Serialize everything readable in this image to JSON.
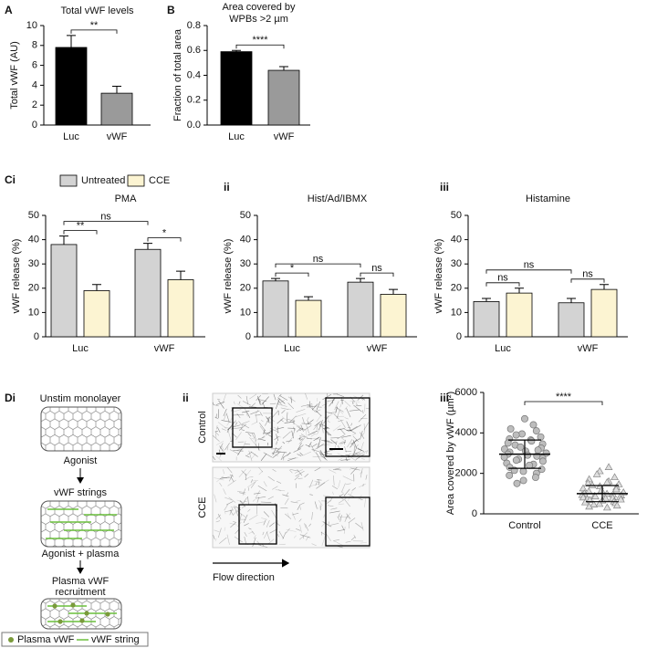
{
  "panel_labels": [
    "A",
    "B",
    "Ci",
    "ii",
    "iii",
    "Di",
    "ii",
    "iii"
  ],
  "chart_data": [
    {
      "type": "bar",
      "title": "Total vWF levels",
      "y_label": "Total vWF (AU)",
      "categories": [
        "Luc",
        "vWF"
      ],
      "values": [
        7.8,
        3.2
      ],
      "errors": [
        1.2,
        0.7
      ],
      "colors": [
        "#000000",
        "#9a9a9a"
      ],
      "ylim": [
        0,
        10
      ],
      "yticks": [
        0,
        2,
        4,
        6,
        8,
        10
      ],
      "annotations": [
        "**"
      ]
    },
    {
      "type": "bar",
      "title_lines": [
        "Area covered by",
        "WPBs >2 µm"
      ],
      "y_label": "Fraction of total area",
      "categories": [
        "Luc",
        "vWF"
      ],
      "values": [
        0.59,
        0.44
      ],
      "errors": [
        0.01,
        0.03
      ],
      "colors": [
        "#000000",
        "#9a9a9a"
      ],
      "ylim": [
        0,
        0.8
      ],
      "yticks": [
        {
          "value": 0,
          "label": "0.0"
        },
        0.2,
        0.4,
        0.6,
        0.8
      ],
      "annotations": [
        "****"
      ]
    },
    {
      "type": "bar",
      "title": "PMA",
      "y_label": "vWF release (%)",
      "categories": [
        "Luc",
        "vWF"
      ],
      "series": [
        {
          "name": "Untreated",
          "color": "#d3d3d3",
          "values": [
            38,
            36
          ],
          "errors": [
            3.5,
            2.5
          ]
        },
        {
          "name": "CCE",
          "color": "#fcf4d2",
          "values": [
            19,
            23.5
          ],
          "errors": [
            2.5,
            3.5
          ]
        }
      ],
      "ylim": [
        0,
        50
      ],
      "yticks": [
        0,
        10,
        20,
        30,
        40,
        50
      ],
      "annotations": [
        "**",
        "ns",
        "*"
      ]
    },
    {
      "type": "bar",
      "title": "Hist/Ad/IBMX",
      "y_label": "vWF release (%)",
      "categories": [
        "Luc",
        "vWF"
      ],
      "series": [
        {
          "color": "#d3d3d3",
          "values": [
            23,
            22.5
          ],
          "errors": [
            1,
            1.5
          ]
        },
        {
          "color": "#fcf4d2",
          "values": [
            15,
            17.5
          ],
          "errors": [
            1.5,
            2
          ]
        }
      ],
      "ylim": [
        0,
        50
      ],
      "yticks": [
        0,
        10,
        20,
        30,
        40,
        50
      ],
      "annotations": [
        "*",
        "ns",
        "ns"
      ]
    },
    {
      "type": "bar",
      "title": "Histamine",
      "y_label": "vWF release (%)",
      "categories": [
        "Luc",
        "vWF"
      ],
      "series": [
        {
          "color": "#d3d3d3",
          "values": [
            14.5,
            14
          ],
          "errors": [
            1.3,
            1.8
          ]
        },
        {
          "color": "#fcf4d2",
          "values": [
            18,
            19.5
          ],
          "errors": [
            2,
            2
          ]
        }
      ],
      "ylim": [
        0,
        50
      ],
      "yticks": [
        0,
        10,
        20,
        30,
        40,
        50
      ],
      "annotations": [
        "ns",
        "ns",
        "ns"
      ]
    },
    {
      "type": "strip",
      "y_label": "Area covered by vWF (µm²)",
      "categories": [
        "Control",
        "CCE"
      ],
      "series": [
        {
          "marker": "circle",
          "color": "#bdbdbd",
          "mean": 2950,
          "sd": 700,
          "values": [
            4700,
            4400,
            4200,
            4100,
            3950,
            3900,
            3800,
            3700,
            3650,
            3600,
            3500,
            3450,
            3400,
            3300,
            3250,
            3200,
            3150,
            3100,
            3050,
            3000,
            2950,
            2900,
            2850,
            2800,
            2750,
            2700,
            2650,
            2600,
            2500,
            2450,
            2400,
            2300,
            2200,
            2150,
            2100,
            2000,
            1900,
            1800,
            1650,
            1500
          ]
        },
        {
          "marker": "triangle",
          "color": "#dedede",
          "mean": 1000,
          "sd": 400,
          "values": [
            2300,
            2100,
            1950,
            1800,
            1700,
            1600,
            1550,
            1500,
            1450,
            1400,
            1350,
            1300,
            1250,
            1200,
            1150,
            1100,
            1050,
            1000,
            980,
            950,
            920,
            900,
            870,
            850,
            820,
            800,
            780,
            750,
            720,
            700,
            680,
            650,
            600,
            560,
            520,
            480,
            450,
            400,
            350,
            300
          ]
        }
      ],
      "ylim": [
        0,
        6000
      ],
      "yticks": [
        0,
        2000,
        4000,
        6000
      ],
      "annotations": [
        "****"
      ]
    }
  ],
  "diagram": {
    "steps": [
      "Unstim monolayer",
      "vWF strings"
    ],
    "step3_lines": [
      "Plasma vWF",
      "recruitment"
    ],
    "arrows": [
      "Agonist",
      "Agonist + plasma"
    ],
    "legend": [
      "Plasma vWF",
      "vWF string"
    ]
  },
  "images": {
    "rows": [
      "Control",
      "CCE"
    ],
    "caption": "Flow direction"
  }
}
